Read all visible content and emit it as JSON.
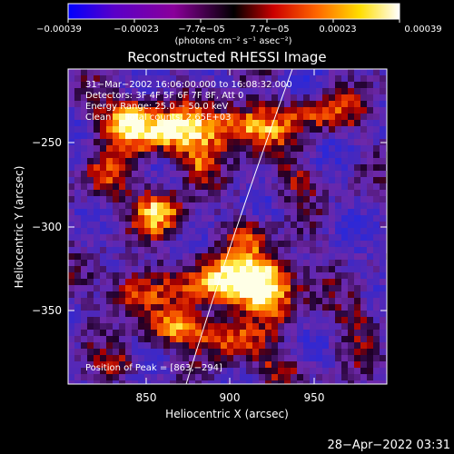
{
  "colorbar": {
    "ticks": [
      "−0.00039",
      "−0.00023",
      "−7.7e−05",
      "7.7e−05",
      "0.00023",
      "0.00039"
    ],
    "units": "(photons cm⁻² s⁻¹ asec⁻²)",
    "stops": [
      "#0000ff",
      "#5a00c8",
      "#8a009a",
      "#000000",
      "#cc0000",
      "#ff6600",
      "#ffdd00",
      "#ffffff"
    ]
  },
  "image": {
    "title": "Reconstructed RHESSI Image",
    "info_lines": [
      "31−Mar−2002 16:06:00.000 to 16:08:32.000",
      "Detectors: 3F 4F 5F 6F 7F 8F, Att 0",
      "Energy Range: 25.0 − 50.0 keV",
      "Clean     Total counts: 2.65E+03"
    ],
    "peak_label": "Position of Peak = [863,−294]",
    "x_axis": {
      "label": "Heliocentric X (arcsec)",
      "ticks": [
        "850",
        "900",
        "950"
      ]
    },
    "y_axis": {
      "label": "Heliocentric Y (arcsec)",
      "ticks": [
        "−250",
        "−300",
        "−350"
      ]
    }
  },
  "footer": {
    "timestamp": "28−Apr−2022 03:31"
  }
}
